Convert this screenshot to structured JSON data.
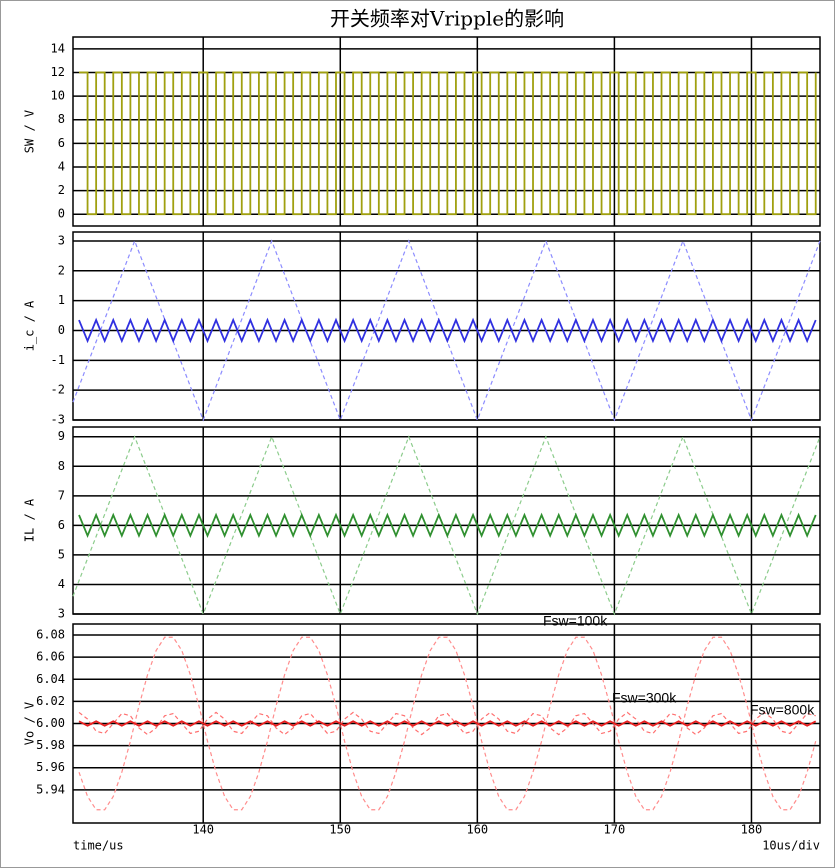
{
  "chart_data": {
    "title": "开关频率对Vripple的影响",
    "xlabel": "time/us",
    "x_division": "10us/div",
    "xlim": [
      130.5,
      185
    ],
    "xticks": [
      140,
      150,
      160,
      170,
      180
    ],
    "grid": true,
    "x": [
      130.9375,
      131.5625,
      132.1875,
      132.8125,
      133.4375,
      134.0625,
      134.6875,
      135.3125,
      135.9375,
      136.5625,
      137.1875,
      137.8125,
      138.4375,
      139.0625,
      139.6875,
      140.3125,
      140.9375,
      141.5625,
      142.1875,
      142.8125,
      143.4375,
      144.0625,
      144.6875,
      145.3125,
      145.9375,
      146.5625,
      147.1875,
      147.8125,
      148.4375,
      149.0625,
      149.6875,
      150.3125,
      150.9375,
      151.5625,
      152.1875,
      152.8125,
      153.4375,
      154.0625,
      154.6875,
      155.3125,
      155.9375,
      156.5625,
      157.1875,
      157.8125,
      158.4375,
      159.0625,
      159.6875,
      160.3125,
      160.9375,
      161.5625,
      162.1875,
      162.8125,
      163.4375,
      164.0625,
      164.6875,
      165.3125,
      165.9375,
      166.5625,
      167.1875,
      167.8125,
      168.4375,
      169.0625,
      169.6875,
      170.3125,
      170.9375,
      171.5625,
      172.1875,
      172.8125,
      173.4375,
      174.0625,
      174.6875,
      175.3125,
      175.9375,
      176.5625,
      177.1875,
      177.8125,
      178.4375,
      179.0625,
      179.6875,
      180.3125,
      180.9375,
      181.5625,
      182.1875,
      182.8125,
      183.4375,
      184.0625,
      184.6875
    ],
    "panels": [
      {
        "type": "step",
        "ylabel": "SW / V",
        "ylim": [
          -1,
          15
        ],
        "yticks": [
          0,
          2,
          4,
          6,
          8,
          10,
          12,
          14
        ],
        "series": [
          {
            "color": "#a0a010",
            "values": [
              12,
              0,
              12,
              0,
              12,
              0,
              12,
              0,
              12,
              0,
              12,
              0,
              12,
              0,
              12,
              0,
              12,
              0,
              12,
              0,
              12,
              0,
              12,
              0,
              12,
              0,
              12,
              0,
              12,
              0,
              12,
              0,
              12,
              0,
              12,
              0,
              12,
              0,
              12,
              0,
              12,
              0,
              12,
              0,
              12,
              0,
              12,
              0,
              12,
              0,
              12,
              0,
              12,
              0,
              12,
              0,
              12,
              0,
              12,
              0,
              12,
              0,
              12,
              0,
              12,
              0,
              12,
              0,
              12,
              0,
              12,
              0,
              12,
              0,
              12,
              0,
              12,
              0,
              12,
              0,
              12,
              0,
              12,
              0,
              12,
              0,
              12
            ]
          }
        ]
      },
      {
        "type": "line",
        "ylabel": "i_c / A",
        "ylim": [
          -3,
          3.3
        ],
        "yticks": [
          -3,
          -2,
          -1,
          0,
          1,
          2,
          3
        ],
        "series": [
          {
            "color": "#8c8cff",
            "dashed": true,
            "x": [
              130.5,
              135,
              140,
              145,
              150,
              155,
              160,
              165,
              170,
              175,
              180,
              185
            ],
            "values": [
              -2.4,
              3,
              -3,
              3,
              -3,
              3,
              -3,
              3,
              -3,
              3,
              -3,
              3
            ]
          },
          {
            "color": "#3030e0",
            "values": [
              0.35,
              -0.35,
              0.35,
              -0.35,
              0.35,
              -0.35,
              0.35,
              -0.35,
              0.35,
              -0.35,
              0.35,
              -0.35,
              0.35,
              -0.35,
              0.35,
              -0.35,
              0.35,
              -0.35,
              0.35,
              -0.35,
              0.35,
              -0.35,
              0.35,
              -0.35,
              0.35,
              -0.35,
              0.35,
              -0.35,
              0.35,
              -0.35,
              0.35,
              -0.35,
              0.35,
              -0.35,
              0.35,
              -0.35,
              0.35,
              -0.35,
              0.35,
              -0.35,
              0.35,
              -0.35,
              0.35,
              -0.35,
              0.35,
              -0.35,
              0.35,
              -0.35,
              0.35,
              -0.35,
              0.35,
              -0.35,
              0.35,
              -0.35,
              0.35,
              -0.35,
              0.35,
              -0.35,
              0.35,
              -0.35,
              0.35,
              -0.35,
              0.35,
              -0.35,
              0.35,
              -0.35,
              0.35,
              -0.35,
              0.35,
              -0.35,
              0.35,
              -0.35,
              0.35,
              -0.35,
              0.35,
              -0.35,
              0.35,
              -0.35,
              0.35,
              -0.35,
              0.35,
              -0.35,
              0.35,
              -0.35,
              0.35,
              -0.35,
              0.35
            ]
          }
        ]
      },
      {
        "type": "line",
        "ylabel": "IL / A",
        "ylim": [
          3,
          9.33
        ],
        "yticks": [
          3,
          4,
          5,
          6,
          7,
          8,
          9
        ],
        "series": [
          {
            "color": "#8ccc8c",
            "dashed": true,
            "x": [
              130.5,
              135,
              140,
              145,
              150,
              155,
              160,
              165,
              170,
              175,
              180,
              185
            ],
            "values": [
              3.6,
              9,
              3,
              9,
              3,
              9,
              3,
              9,
              3,
              9,
              3,
              9
            ]
          },
          {
            "color": "#309030",
            "values": [
              6.35,
              5.65,
              6.35,
              5.65,
              6.35,
              5.65,
              6.35,
              5.65,
              6.35,
              5.65,
              6.35,
              5.65,
              6.35,
              5.65,
              6.35,
              5.65,
              6.35,
              5.65,
              6.35,
              5.65,
              6.35,
              5.65,
              6.35,
              5.65,
              6.35,
              5.65,
              6.35,
              5.65,
              6.35,
              5.65,
              6.35,
              5.65,
              6.35,
              5.65,
              6.35,
              5.65,
              6.35,
              5.65,
              6.35,
              5.65,
              6.35,
              5.65,
              6.35,
              5.65,
              6.35,
              5.65,
              6.35,
              5.65,
              6.35,
              5.65,
              6.35,
              5.65,
              6.35,
              5.65,
              6.35,
              5.65,
              6.35,
              5.65,
              6.35,
              5.65,
              6.35,
              5.65,
              6.35,
              5.65,
              6.35,
              5.65,
              6.35,
              5.65,
              6.35,
              5.65,
              6.35,
              5.65,
              6.35,
              5.65,
              6.35,
              5.65,
              6.35,
              5.65,
              6.35,
              5.65,
              6.35,
              5.65,
              6.35,
              5.65,
              6.35,
              5.65,
              6.35
            ]
          }
        ]
      },
      {
        "type": "line",
        "ylabel": "Vo / V",
        "ylim": [
          5.91,
          6.09
        ],
        "yticks": [
          {
            "value": 5.94,
            "label": "5.94"
          },
          {
            "value": 5.96,
            "label": "5.96"
          },
          {
            "value": 5.98,
            "label": "5.98"
          },
          {
            "value": 6,
            "label": "6.00"
          },
          {
            "value": 6.02,
            "label": "6.02"
          },
          {
            "value": 6.04,
            "label": "6.04"
          },
          {
            "value": 6.06,
            "label": "6.06"
          },
          {
            "value": 6.08,
            "label": "6.08"
          }
        ],
        "series": [
          {
            "name": "Fsw=100k",
            "color": "#ff8c8c",
            "dashed": true,
            "values": [
              5.956,
              5.934,
              5.922,
              5.922,
              5.934,
              5.956,
              5.984,
              6.016,
              6.044,
              6.066,
              6.078,
              6.078,
              6.066,
              6.044,
              6.016,
              5.984,
              5.956,
              5.934,
              5.922,
              5.922,
              5.934,
              5.956,
              5.984,
              6.016,
              6.044,
              6.066,
              6.078,
              6.078,
              6.066,
              6.044,
              6.016,
              5.984,
              5.956,
              5.934,
              5.922,
              5.922,
              5.934,
              5.956,
              5.984,
              6.016,
              6.044,
              6.066,
              6.078,
              6.078,
              6.066,
              6.044,
              6.016,
              5.984,
              5.956,
              5.934,
              5.922,
              5.922,
              5.934,
              5.956,
              5.984,
              6.016,
              6.044,
              6.066,
              6.078,
              6.078,
              6.066,
              6.044,
              6.016,
              5.984,
              5.956,
              5.934,
              5.922,
              5.922,
              5.934,
              5.956,
              5.984,
              6.016,
              6.044,
              6.066,
              6.078,
              6.078,
              6.066,
              6.044,
              6.016,
              5.984,
              5.956,
              5.934,
              5.922,
              5.922,
              5.934,
              5.956,
              5.984
            ]
          },
          {
            "name": "Fsw=300k",
            "color": "#ff7070",
            "dashed": true,
            "values": [
              6.01,
              6.004,
              5.993,
              5.991,
              6,
              6.009,
              6.007,
              5.996,
              5.99,
              5.996,
              6.007,
              6.009,
              6,
              5.991,
              5.993,
              6.004,
              6.01,
              6.004,
              5.993,
              5.991,
              6,
              6.009,
              6.007,
              5.996,
              5.99,
              5.996,
              6.007,
              6.009,
              6,
              5.991,
              5.993,
              6.004,
              6.01,
              6.004,
              5.993,
              5.991,
              6,
              6.009,
              6.007,
              5.996,
              5.99,
              5.996,
              6.007,
              6.009,
              6,
              5.991,
              5.993,
              6.004,
              6.01,
              6.004,
              5.993,
              5.991,
              6,
              6.009,
              6.007,
              5.996,
              5.99,
              5.996,
              6.007,
              6.009,
              6,
              5.991,
              5.993,
              6.004,
              6.01,
              6.004,
              5.993,
              5.991,
              6,
              6.009,
              6.007,
              5.996,
              5.99,
              5.996,
              6.007,
              6.009,
              6,
              5.991,
              5.993,
              6.004,
              6.01,
              6.004,
              5.993,
              5.991,
              6,
              6.009,
              6.007
            ]
          },
          {
            "name": "Fsw=800k",
            "color": "#e82020",
            "values": [
              6.002,
              5.998,
              6.002,
              5.998,
              6.002,
              5.998,
              6.002,
              5.998,
              6.002,
              5.998,
              6.002,
              5.998,
              6.002,
              5.998,
              6.002,
              5.998,
              6.002,
              5.998,
              6.002,
              5.998,
              6.002,
              5.998,
              6.002,
              5.998,
              6.002,
              5.998,
              6.002,
              5.998,
              6.002,
              5.998,
              6.002,
              5.998,
              6.002,
              5.998,
              6.002,
              5.998,
              6.002,
              5.998,
              6.002,
              5.998,
              6.002,
              5.998,
              6.002,
              5.998,
              6.002,
              5.998,
              6.002,
              5.998,
              6.002,
              5.998,
              6.002,
              5.998,
              6.002,
              5.998,
              6.002,
              5.998,
              6.002,
              5.998,
              6.002,
              5.998,
              6.002,
              5.998,
              6.002,
              5.998,
              6.002,
              5.998,
              6.002,
              5.998,
              6.002,
              5.998,
              6.002,
              5.998,
              6.002,
              5.998,
              6.002,
              5.998,
              6.002,
              5.998,
              6.002,
              5.998,
              6.002,
              5.998,
              6.002,
              5.998,
              6.002,
              5.998,
              6.002
            ]
          }
        ]
      }
    ]
  }
}
